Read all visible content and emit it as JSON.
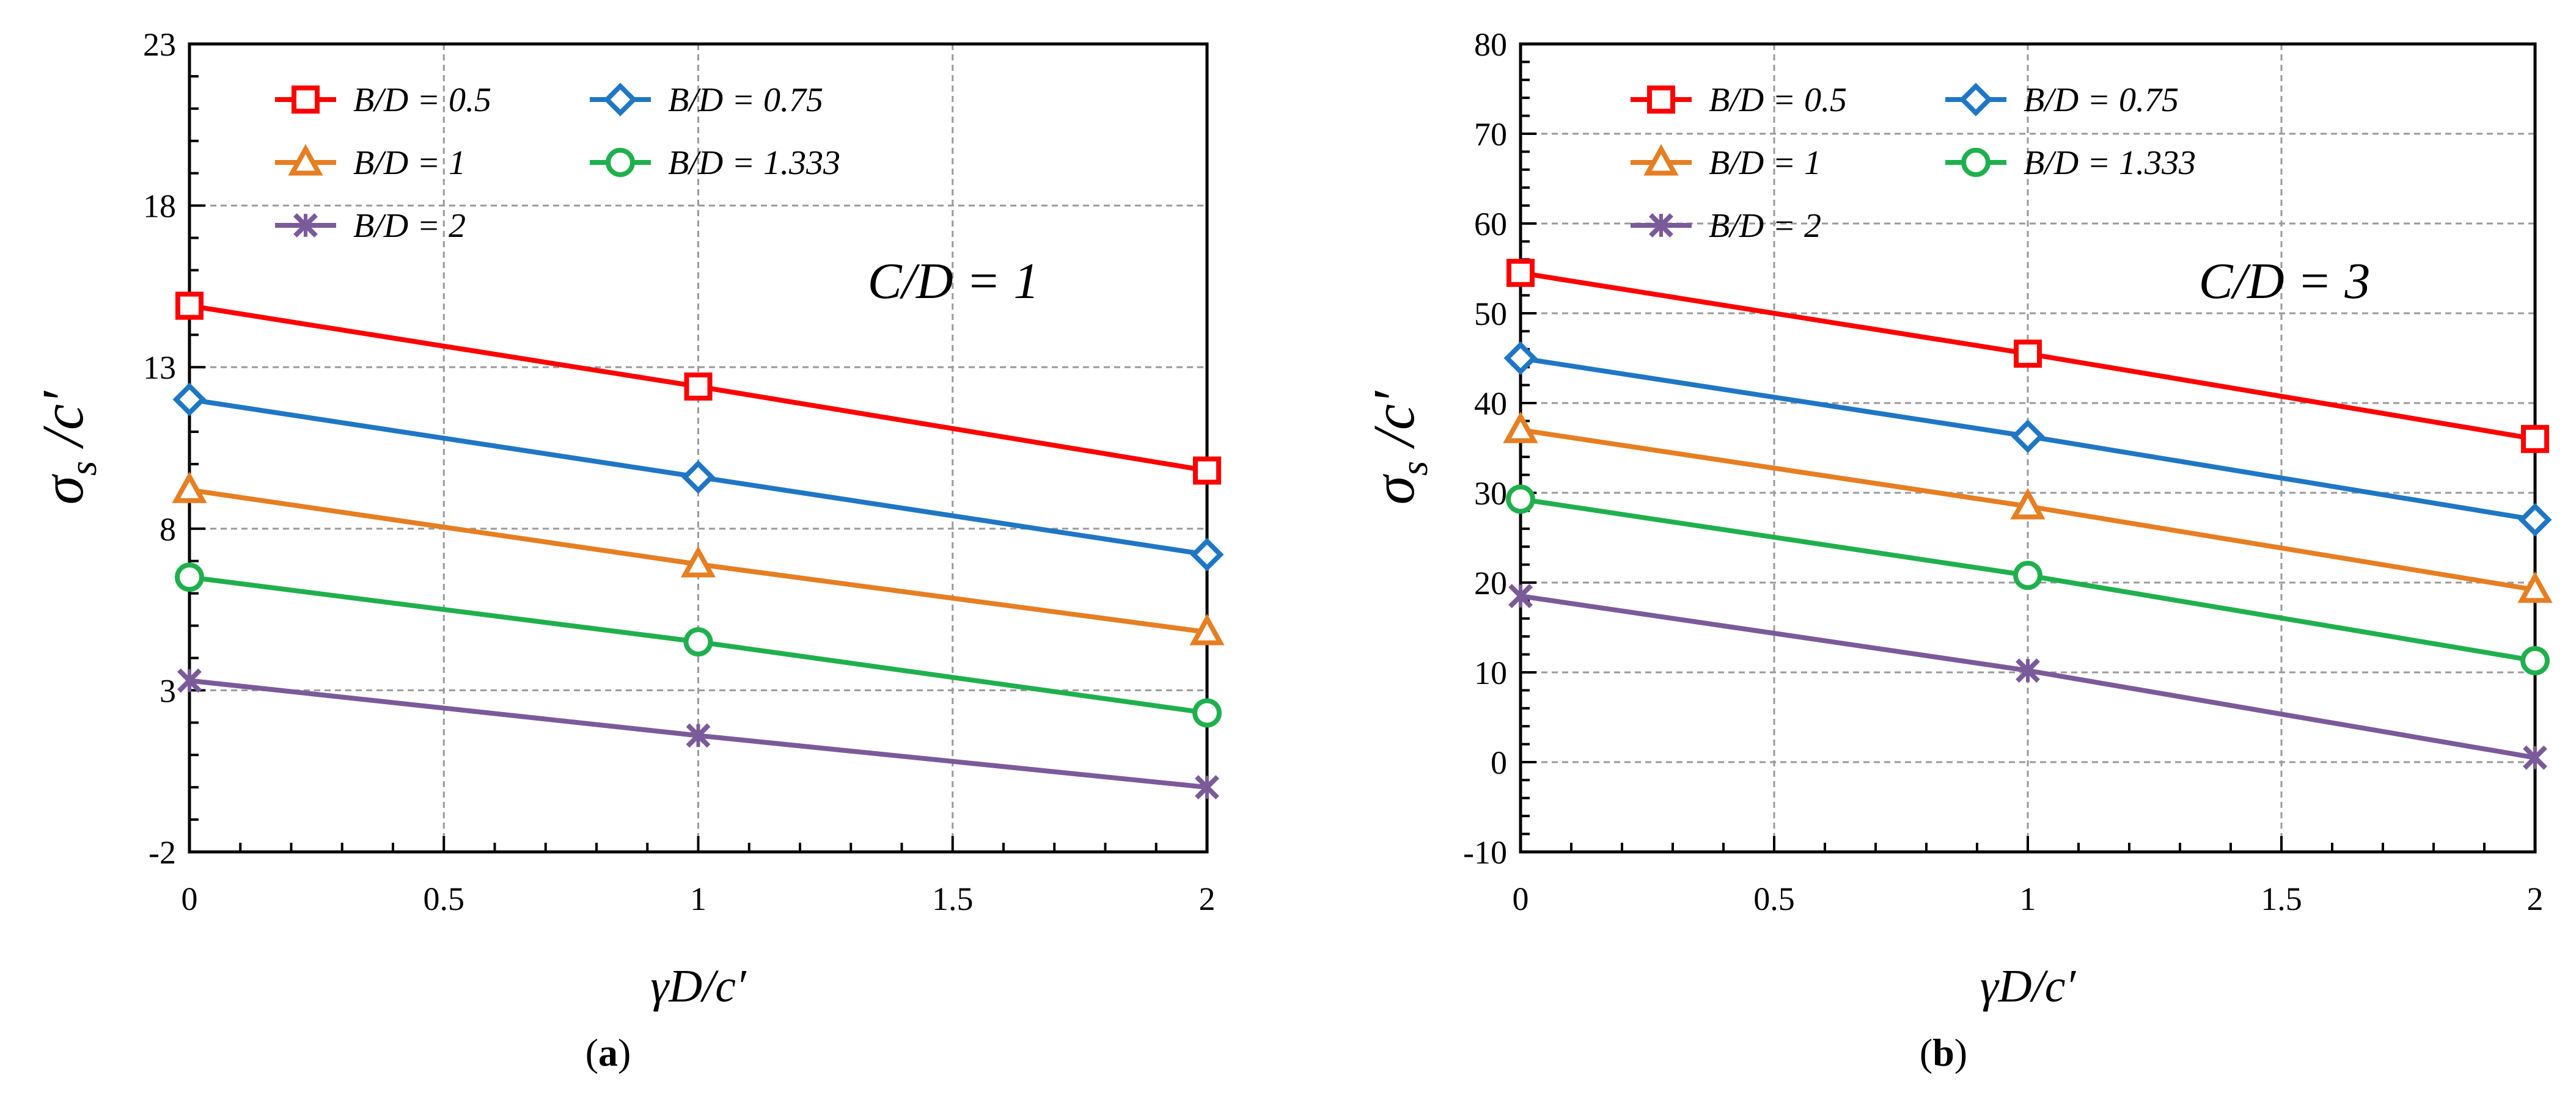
{
  "chart_data": [
    {
      "type": "line",
      "panel_label": "a",
      "annotation": "C/D = 1",
      "xlabel": "γD/c′",
      "ylabel": "σs /c′",
      "ylabel_main": "σ",
      "ylabel_sub": "s",
      "ylabel_rest": " /c′",
      "xlim": [
        0,
        2
      ],
      "ylim": [
        -2,
        23
      ],
      "xticks": [
        0,
        0.5,
        1,
        1.5,
        2
      ],
      "xtick_labels": [
        "0",
        "0.5",
        "1",
        "1.5",
        "2"
      ],
      "yticks": [
        -2,
        3,
        8,
        13,
        18,
        23
      ],
      "ytick_labels": [
        "-2",
        "3",
        "8",
        "13",
        "18",
        "23"
      ],
      "grid": true,
      "legend_position": "top-left",
      "x": [
        0,
        1,
        2
      ],
      "series": [
        {
          "name": "B/D = 0.5",
          "color": "#ff0000",
          "marker": "square",
          "values": [
            14.9,
            12.4,
            9.8
          ]
        },
        {
          "name": "B/D = 0.75",
          "color": "#1f77c4",
          "marker": "diamond",
          "values": [
            12.0,
            9.6,
            7.2
          ]
        },
        {
          "name": "B/D = 1",
          "color": "#e67e22",
          "marker": "triangle",
          "values": [
            9.2,
            6.9,
            4.8
          ]
        },
        {
          "name": "B/D = 1.333",
          "color": "#1fb04d",
          "marker": "circle",
          "values": [
            6.5,
            4.5,
            2.3
          ]
        },
        {
          "name": "B/D = 2",
          "color": "#7b5a9a",
          "marker": "x",
          "values": [
            3.3,
            1.6,
            0.0
          ]
        }
      ]
    },
    {
      "type": "line",
      "panel_label": "b",
      "annotation": "C/D = 3",
      "xlabel": "γD/c′",
      "ylabel": "σs /c′",
      "ylabel_main": "σ",
      "ylabel_sub": "s",
      "ylabel_rest": " /c′",
      "xlim": [
        0,
        2
      ],
      "ylim": [
        -10,
        80
      ],
      "xticks": [
        0,
        0.5,
        1,
        1.5,
        2
      ],
      "xtick_labels": [
        "0",
        "0.5",
        "1",
        "1.5",
        "2"
      ],
      "yticks": [
        -10,
        0,
        10,
        20,
        30,
        40,
        50,
        60,
        70,
        80
      ],
      "ytick_labels": [
        "-10",
        "0",
        "10",
        "20",
        "30",
        "40",
        "50",
        "60",
        "70",
        "80"
      ],
      "grid": true,
      "legend_position": "top-left",
      "x": [
        0,
        1,
        2
      ],
      "series": [
        {
          "name": "B/D = 0.5",
          "color": "#ff0000",
          "marker": "square",
          "values": [
            54.5,
            45.5,
            36.0
          ]
        },
        {
          "name": "B/D = 0.75",
          "color": "#1f77c4",
          "marker": "diamond",
          "values": [
            45.0,
            36.3,
            27.0
          ]
        },
        {
          "name": "B/D = 1",
          "color": "#e67e22",
          "marker": "triangle",
          "values": [
            37.0,
            28.5,
            19.2
          ]
        },
        {
          "name": "B/D = 1.333",
          "color": "#1fb04d",
          "marker": "circle",
          "values": [
            29.3,
            20.8,
            11.3
          ]
        },
        {
          "name": "B/D = 2",
          "color": "#7b5a9a",
          "marker": "x",
          "values": [
            18.5,
            10.2,
            0.5
          ]
        }
      ]
    }
  ]
}
